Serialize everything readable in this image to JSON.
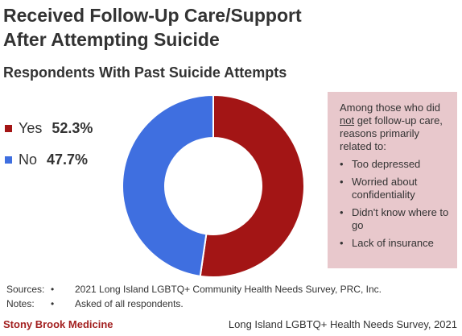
{
  "header": {
    "title_line1": "Received Follow-Up Care/Support",
    "title_line2": "After Attempting Suicide",
    "subtitle": "Respondents With Past Suicide Attempts"
  },
  "chart_data": {
    "type": "pie",
    "donut": true,
    "title": "Received Follow-Up Care/Support After Attempting Suicide",
    "subtitle": "Respondents With Past Suicide Attempts",
    "categories": [
      "Yes",
      "No"
    ],
    "values": [
      52.3,
      47.7
    ],
    "value_labels": [
      "52.3%",
      "47.7%"
    ],
    "colors": [
      "#a31515",
      "#3f6fe0"
    ],
    "legend_position": "left"
  },
  "note": {
    "intro_before": "Among those who did ",
    "intro_underlined": "not",
    "intro_after": " get follow-up care, reasons primarily related to:",
    "bullet_char": "•",
    "items": [
      "Too depressed",
      "Worried about confidentiality",
      "Didn't know where to go",
      "Lack of insurance"
    ],
    "background_color": "#e8c8cc"
  },
  "footer": {
    "sources_label": "Sources:",
    "sources_text": "2021 Long Island LGBTQ+ Community Health Needs Survey, PRC, Inc.",
    "notes_label": "Notes:",
    "notes_text": "Asked of all respondents.",
    "bullet": "•",
    "brand": "Stony Brook Medicine",
    "survey": "Long Island LGBTQ+ Health Needs Survey, 2021"
  }
}
